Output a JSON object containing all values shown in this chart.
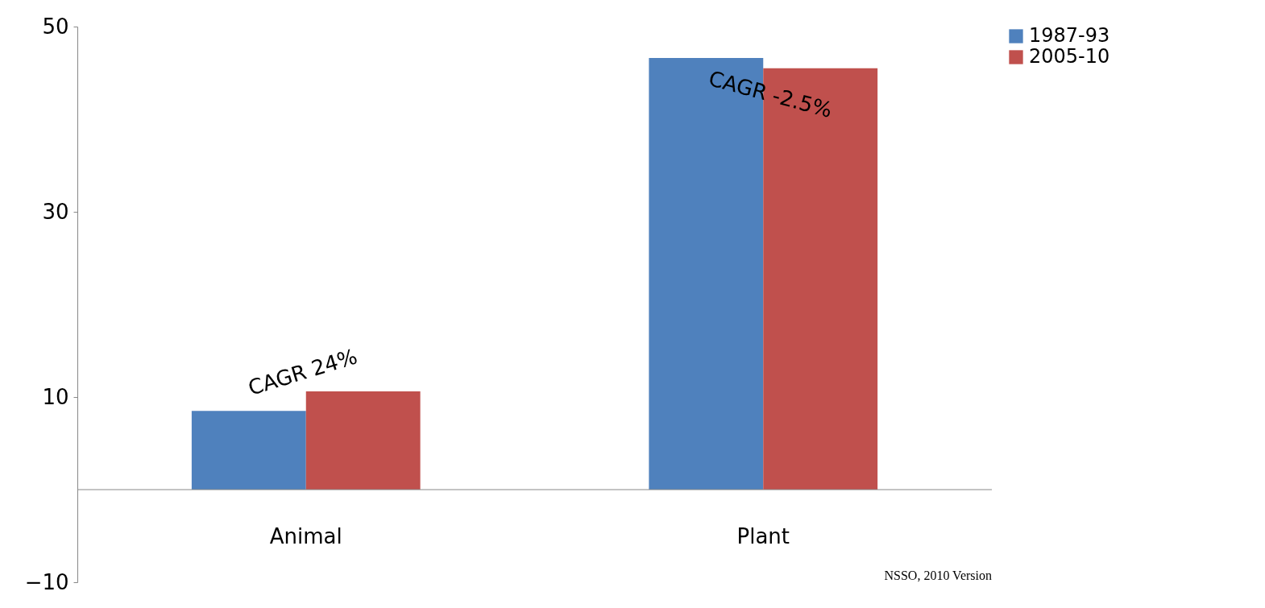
{
  "chart_data": {
    "type": "bar",
    "categories": [
      "Animal",
      "Plant"
    ],
    "series": [
      {
        "name": "1987-93",
        "color": "#4f81bd",
        "values": [
          8.5,
          46.6
        ]
      },
      {
        "name": "2005-10",
        "color": "#c0504d",
        "values": [
          10.6,
          45.5
        ]
      }
    ],
    "ylim": [
      -10,
      50
    ],
    "yticks": [
      -10,
      10,
      30,
      50
    ],
    "grid": false,
    "legend": "right",
    "annotations": [
      "CAGR 24%",
      "CAGR -2.5%",
      "NSSO, 2010 Version"
    ]
  }
}
